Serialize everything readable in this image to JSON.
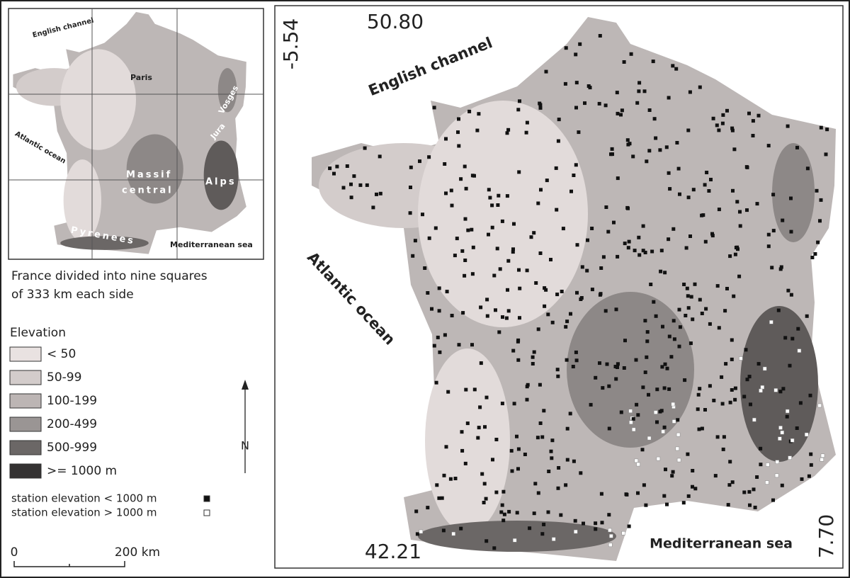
{
  "inset": {
    "labels": [
      "English channel",
      "Paris",
      "Vosges",
      "Jura",
      "Atlantic ocean",
      "Massif",
      "central",
      "Alps",
      "Pyrenees",
      "Mediterranean sea"
    ],
    "caption": [
      "France divided into nine squares",
      "of 333 km each side"
    ]
  },
  "legend": {
    "title": "Elevation",
    "items": [
      {
        "label": "< 50",
        "color": "#e9e2e1"
      },
      {
        "label": "50-99",
        "color": "#d3cccb"
      },
      {
        "label": "100-199",
        "color": "#bcb5b4"
      },
      {
        "label": "200-499",
        "color": "#9a9594"
      },
      {
        "label": "500-999",
        "color": "#6b6766"
      },
      {
        "label": ">= 1000 m",
        "color": "#343232"
      }
    ],
    "stations": [
      {
        "label": "station elevation < 1000 m",
        "color": "#111111"
      },
      {
        "label": "station elevation > 1000 m",
        "color": "#ffffff"
      }
    ]
  },
  "north_arrow": "N",
  "scale_bar": {
    "labels": [
      "0",
      "200 km"
    ]
  },
  "main_map": {
    "coordinates": {
      "north": "50.80",
      "west": "-5.54",
      "south": "42.21",
      "east": "7.70"
    },
    "labels": [
      "English channel",
      "Atlantic ocean",
      "Mediterranean sea"
    ]
  }
}
